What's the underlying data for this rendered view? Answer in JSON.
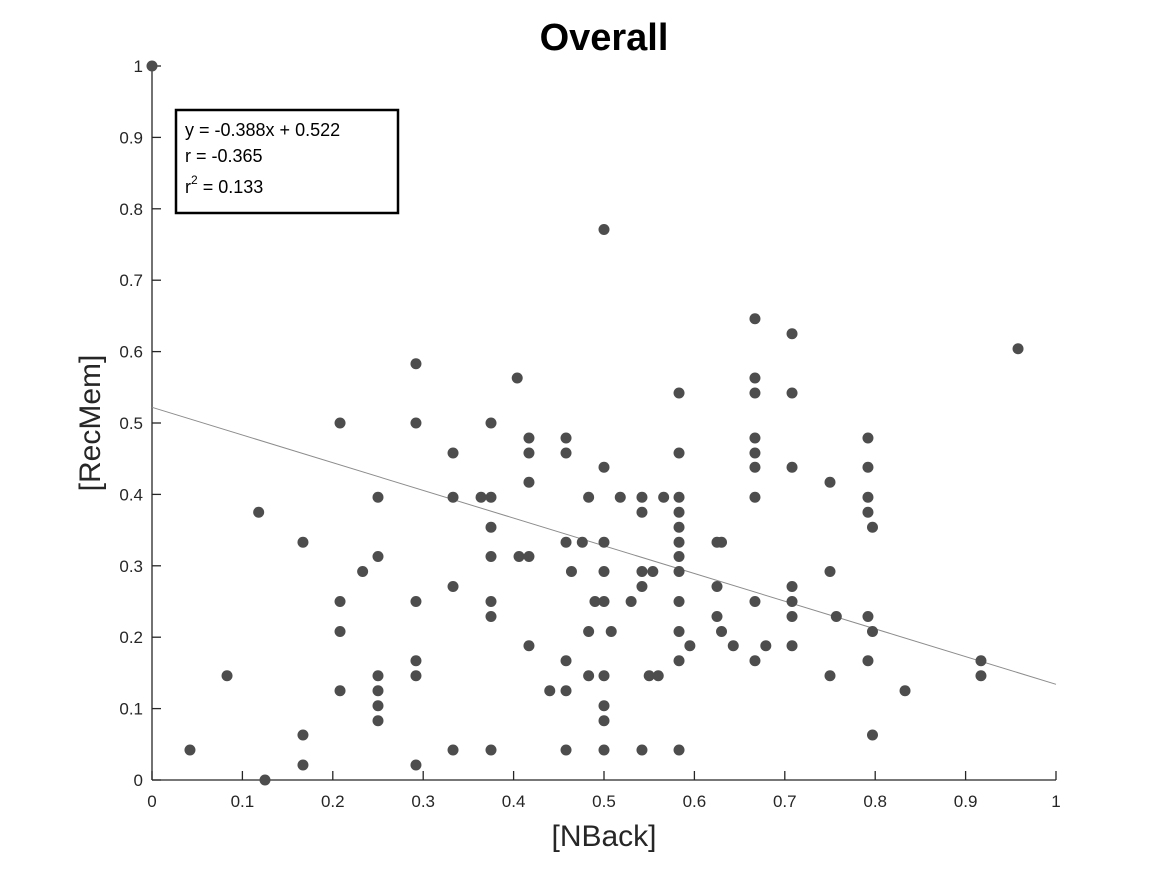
{
  "chart_data": {
    "type": "scatter",
    "title": "Overall",
    "xlabel": "[NBack]",
    "ylabel": "[RecMem]",
    "xlim": [
      0,
      1
    ],
    "ylim": [
      0,
      1
    ],
    "xticks": [
      "0",
      "0.1",
      "0.2",
      "0.3",
      "0.4",
      "0.5",
      "0.6",
      "0.7",
      "0.8",
      "0.9",
      "1"
    ],
    "yticks": [
      "0",
      "0.1",
      "0.2",
      "0.3",
      "0.4",
      "0.5",
      "0.6",
      "0.7",
      "0.8",
      "0.9",
      "1"
    ],
    "grid": false,
    "marker_color": "#4d4d4d",
    "line_color": "#8c8c8c",
    "fit": {
      "slope": -0.388,
      "intercept": 0.522
    },
    "stats": {
      "line1": "y = -0.388x + 0.522",
      "line2": "r = -0.365",
      "line3_prefix": "r",
      "line3_sup": "2",
      "line3_suffix": " = 0.133"
    },
    "points": [
      [
        0.0,
        1.0
      ],
      [
        0.042,
        0.042
      ],
      [
        0.083,
        0.146
      ],
      [
        0.118,
        0.375
      ],
      [
        0.125,
        0.0
      ],
      [
        0.167,
        0.333
      ],
      [
        0.167,
        0.063
      ],
      [
        0.167,
        0.021
      ],
      [
        0.208,
        0.5
      ],
      [
        0.208,
        0.25
      ],
      [
        0.208,
        0.208
      ],
      [
        0.208,
        0.125
      ],
      [
        0.233,
        0.292
      ],
      [
        0.25,
        0.396
      ],
      [
        0.25,
        0.313
      ],
      [
        0.25,
        0.146
      ],
      [
        0.25,
        0.125
      ],
      [
        0.25,
        0.104
      ],
      [
        0.25,
        0.083
      ],
      [
        0.292,
        0.583
      ],
      [
        0.292,
        0.5
      ],
      [
        0.292,
        0.25
      ],
      [
        0.292,
        0.167
      ],
      [
        0.292,
        0.146
      ],
      [
        0.292,
        0.021
      ],
      [
        0.333,
        0.458
      ],
      [
        0.333,
        0.396
      ],
      [
        0.333,
        0.271
      ],
      [
        0.333,
        0.042
      ],
      [
        0.364,
        0.396
      ],
      [
        0.375,
        0.5
      ],
      [
        0.375,
        0.396
      ],
      [
        0.375,
        0.354
      ],
      [
        0.375,
        0.313
      ],
      [
        0.375,
        0.25
      ],
      [
        0.375,
        0.229
      ],
      [
        0.375,
        0.042
      ],
      [
        0.404,
        0.563
      ],
      [
        0.406,
        0.313
      ],
      [
        0.417,
        0.479
      ],
      [
        0.417,
        0.458
      ],
      [
        0.417,
        0.417
      ],
      [
        0.417,
        0.313
      ],
      [
        0.417,
        0.188
      ],
      [
        0.44,
        0.125
      ],
      [
        0.458,
        0.479
      ],
      [
        0.458,
        0.458
      ],
      [
        0.458,
        0.333
      ],
      [
        0.458,
        0.167
      ],
      [
        0.458,
        0.125
      ],
      [
        0.458,
        0.042
      ],
      [
        0.464,
        0.292
      ],
      [
        0.476,
        0.333
      ],
      [
        0.483,
        0.396
      ],
      [
        0.483,
        0.208
      ],
      [
        0.483,
        0.146
      ],
      [
        0.49,
        0.25
      ],
      [
        0.5,
        0.771
      ],
      [
        0.5,
        0.438
      ],
      [
        0.5,
        0.333
      ],
      [
        0.5,
        0.292
      ],
      [
        0.5,
        0.25
      ],
      [
        0.5,
        0.146
      ],
      [
        0.5,
        0.104
      ],
      [
        0.5,
        0.083
      ],
      [
        0.5,
        0.042
      ],
      [
        0.508,
        0.208
      ],
      [
        0.518,
        0.396
      ],
      [
        0.53,
        0.25
      ],
      [
        0.542,
        0.396
      ],
      [
        0.542,
        0.375
      ],
      [
        0.542,
        0.292
      ],
      [
        0.542,
        0.271
      ],
      [
        0.542,
        0.042
      ],
      [
        0.55,
        0.146
      ],
      [
        0.554,
        0.292
      ],
      [
        0.56,
        0.146
      ],
      [
        0.566,
        0.396
      ],
      [
        0.583,
        0.542
      ],
      [
        0.583,
        0.458
      ],
      [
        0.583,
        0.396
      ],
      [
        0.583,
        0.375
      ],
      [
        0.583,
        0.354
      ],
      [
        0.583,
        0.333
      ],
      [
        0.583,
        0.313
      ],
      [
        0.583,
        0.292
      ],
      [
        0.583,
        0.25
      ],
      [
        0.583,
        0.208
      ],
      [
        0.583,
        0.167
      ],
      [
        0.583,
        0.042
      ],
      [
        0.595,
        0.188
      ],
      [
        0.625,
        0.333
      ],
      [
        0.625,
        0.271
      ],
      [
        0.625,
        0.229
      ],
      [
        0.63,
        0.333
      ],
      [
        0.63,
        0.208
      ],
      [
        0.643,
        0.188
      ],
      [
        0.667,
        0.646
      ],
      [
        0.667,
        0.563
      ],
      [
        0.667,
        0.542
      ],
      [
        0.667,
        0.479
      ],
      [
        0.667,
        0.458
      ],
      [
        0.667,
        0.438
      ],
      [
        0.667,
        0.396
      ],
      [
        0.667,
        0.25
      ],
      [
        0.667,
        0.167
      ],
      [
        0.679,
        0.188
      ],
      [
        0.708,
        0.625
      ],
      [
        0.708,
        0.542
      ],
      [
        0.708,
        0.438
      ],
      [
        0.708,
        0.271
      ],
      [
        0.708,
        0.25
      ],
      [
        0.708,
        0.229
      ],
      [
        0.708,
        0.188
      ],
      [
        0.75,
        0.417
      ],
      [
        0.75,
        0.292
      ],
      [
        0.75,
        0.146
      ],
      [
        0.757,
        0.229
      ],
      [
        0.792,
        0.479
      ],
      [
        0.792,
        0.438
      ],
      [
        0.792,
        0.396
      ],
      [
        0.792,
        0.375
      ],
      [
        0.792,
        0.229
      ],
      [
        0.792,
        0.167
      ],
      [
        0.797,
        0.354
      ],
      [
        0.797,
        0.208
      ],
      [
        0.797,
        0.063
      ],
      [
        0.833,
        0.125
      ],
      [
        0.917,
        0.167
      ],
      [
        0.917,
        0.146
      ],
      [
        0.958,
        0.604
      ]
    ]
  }
}
